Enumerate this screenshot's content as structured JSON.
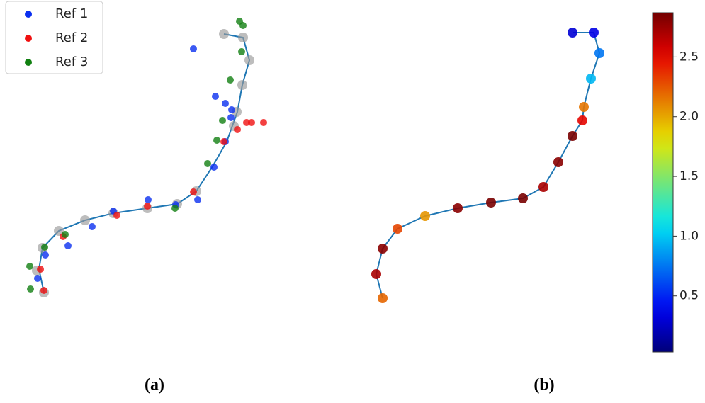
{
  "chart_data": [
    {
      "type": "scatter",
      "label": "(a)",
      "xlim": [
        0,
        40
      ],
      "ylim": [
        0,
        45
      ],
      "path": {
        "color": "#1f77b4",
        "x": [
          6.2,
          5.5,
          6,
          8.3,
          12,
          16,
          20.8,
          25,
          27.7,
          30,
          32,
          33.5,
          34.2,
          35.2,
          34.3,
          31.6
        ],
        "y": [
          6.7,
          10,
          13,
          15.4,
          16.9,
          17.9,
          18.6,
          19.2,
          21,
          24.5,
          28,
          32.2,
          36,
          39.5,
          42.7,
          43.2
        ]
      },
      "points": {
        "color": "#9a9a9a",
        "x": [
          6.2,
          5.2,
          6,
          8.3,
          12,
          16,
          20.8,
          25,
          27.7,
          33,
          33.4,
          34.2,
          35.2,
          34.3,
          31.6
        ],
        "y": [
          6.7,
          9.8,
          13,
          15.4,
          16.9,
          17.9,
          18.6,
          19.2,
          21,
          30.2,
          32.2,
          36,
          39.5,
          42.7,
          43.2
        ]
      },
      "legend": "upper left",
      "series": [
        {
          "name": "Ref 1",
          "color": "#0a2ff0",
          "x": [
            27.3,
            30.4,
            31.8,
            32.7,
            32.6,
            31.8,
            30.2,
            27.9,
            24.8,
            20.9,
            16,
            13,
            9.6,
            6.4,
            5.3
          ],
          "y": [
            41.1,
            34.4,
            33.4,
            32.5,
            31.4,
            28,
            24.4,
            19.8,
            19.1,
            19.8,
            18.2,
            16,
            13.3,
            12,
            8.7
          ]
        },
        {
          "name": "Ref 2",
          "color": "#f01010",
          "x": [
            34.8,
            35.5,
            37.2,
            33.5,
            31.6,
            27.3,
            20.8,
            16.5,
            8.9,
            5.7,
            6.2
          ],
          "y": [
            30.7,
            30.7,
            30.7,
            29.7,
            28,
            20.9,
            18.9,
            17.6,
            14.6,
            10,
            7
          ]
        },
        {
          "name": "Ref 3",
          "color": "#118011",
          "x": [
            33.8,
            34.3,
            34.1,
            32.5,
            31.4,
            30.6,
            29.3,
            24.7,
            9.2,
            6.3,
            4.2,
            4.3
          ],
          "y": [
            45,
            44.4,
            40.7,
            36.7,
            31,
            28.2,
            24.9,
            18.6,
            14.9,
            13.1,
            10.4,
            7.2
          ]
        }
      ]
    },
    {
      "type": "scatter",
      "label": "(b)",
      "xlim": [
        0,
        40
      ],
      "ylim": [
        0,
        45
      ],
      "path": {
        "color": "#1f77b4",
        "x": [
          4,
          3.1,
          4,
          6.1,
          10,
          14.6,
          19.3,
          23.8,
          26.7,
          28.8,
          30.8,
          32.2,
          32.4,
          33.4,
          34.6,
          33.8,
          30.8
        ],
        "y": [
          5.9,
          9.3,
          12.9,
          15.7,
          17.5,
          18.6,
          19.4,
          20,
          21.6,
          25.1,
          28.8,
          31,
          32.9,
          36.9,
          40.5,
          43.4,
          43.4
        ]
      },
      "points": {
        "x": [
          4,
          3.1,
          4,
          6.1,
          10,
          14.6,
          19.3,
          23.8,
          26.7,
          28.8,
          30.8,
          32.2,
          32.4,
          33.4,
          34.6,
          33.8,
          30.8
        ],
        "y": [
          5.9,
          9.3,
          12.9,
          15.7,
          17.5,
          18.6,
          19.4,
          20,
          21.6,
          25.1,
          28.8,
          31,
          32.9,
          36.9,
          40.5,
          43.4,
          43.4
        ],
        "values": [
          2.2,
          2.7,
          2.8,
          2.3,
          2.05,
          2.8,
          2.85,
          2.85,
          2.7,
          2.8,
          2.85,
          2.5,
          2.15,
          0.95,
          0.75,
          0.35,
          0.3
        ]
      },
      "colormap": "jet",
      "clim": [
        0.03,
        2.87
      ],
      "cticks": [
        0.5,
        {
          "value": 1,
          "label": "1.0"
        },
        1.5,
        {
          "value": 2,
          "label": "2.0"
        },
        2.5
      ]
    }
  ]
}
